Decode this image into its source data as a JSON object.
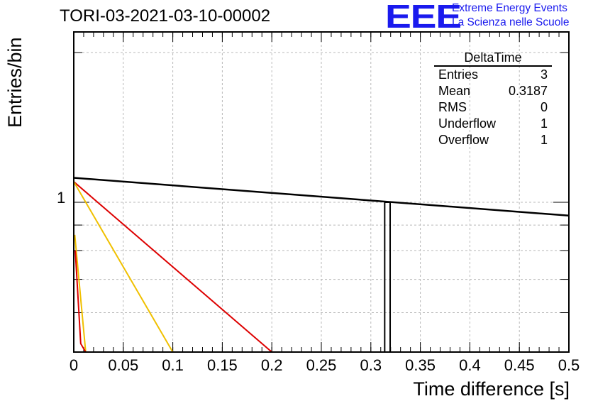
{
  "header": {
    "title": "TORI-03-2021-03-10-00002",
    "logo_mark": "EEE",
    "logo_line1": "Extreme Energy Events",
    "logo_line2": "La Scienza nelle Scuole"
  },
  "stats_box": {
    "title": "DeltaTime",
    "rows": [
      {
        "label": "Entries",
        "value": "3"
      },
      {
        "label": "Mean",
        "value": "0.3187"
      },
      {
        "label": "RMS",
        "value": "0"
      },
      {
        "label": "Underflow",
        "value": "1"
      },
      {
        "label": "Overflow",
        "value": "1"
      }
    ]
  },
  "chart_data": {
    "type": "line",
    "title": "TORI-03-2021-03-10-00002",
    "xlabel": "Time difference [s]",
    "ylabel": "Entries/bin",
    "xlim": [
      0,
      0.5
    ],
    "ylim": [
      0.5,
      2.2
    ],
    "yscale": "log",
    "grid": true,
    "x_ticks": [
      "0",
      "0.05",
      "0.1",
      "0.15",
      "0.2",
      "0.25",
      "0.3",
      "0.35",
      "0.4",
      "0.45",
      "0.5"
    ],
    "y_ticks": [
      "1"
    ],
    "histogram_bins": [
      {
        "x_low": 0.314,
        "x_high": 0.3195,
        "value": 1
      }
    ],
    "series": [
      {
        "color": "#000000",
        "x": [
          0,
          0.5
        ],
        "y": [
          1.12,
          0.94
        ]
      },
      {
        "color": "#dd0000",
        "x": [
          0,
          0.2
        ],
        "y": [
          1.1,
          0.5
        ]
      },
      {
        "color": "#f0c000",
        "x": [
          0,
          0.1
        ],
        "y": [
          1.1,
          0.5
        ]
      },
      {
        "color": "#f0c000",
        "x": [
          0.001,
          0.012
        ],
        "y": [
          0.86,
          0.5
        ]
      },
      {
        "color": "#dd0000",
        "x": [
          0.0015,
          0.007,
          0.012
        ],
        "y": [
          0.8,
          0.52,
          0.5
        ]
      }
    ]
  }
}
